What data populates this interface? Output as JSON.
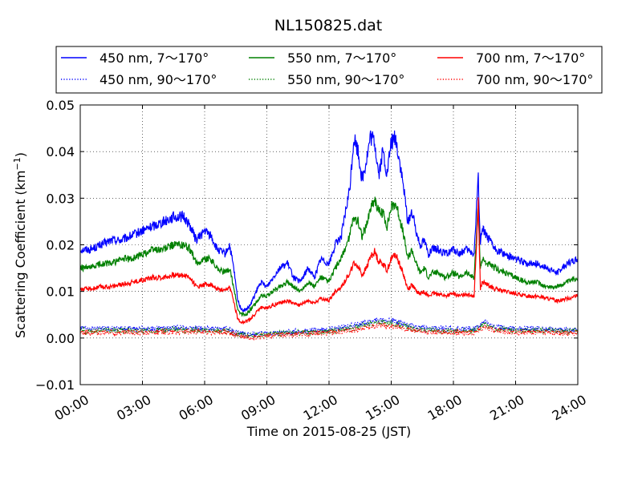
{
  "chart_data": {
    "type": "line",
    "title": "NL150825.dat",
    "xlabel": "Time on 2015-08-25 (JST)",
    "ylabel_main": "Scattering Coefficient (km",
    "ylabel_sup": "−1",
    "ylabel_end": ")",
    "xlim": [
      0,
      24
    ],
    "ylim": [
      -0.01,
      0.05
    ],
    "x_ticks": [
      0,
      3,
      6,
      9,
      12,
      15,
      18,
      21,
      24
    ],
    "x_tick_labels": [
      "00:00",
      "03:00",
      "06:00",
      "09:00",
      "12:00",
      "15:00",
      "18:00",
      "21:00",
      "24:00"
    ],
    "y_ticks": [
      -0.01,
      0.0,
      0.01,
      0.02,
      0.03,
      0.04,
      0.05
    ],
    "y_tick_labels": [
      "−0.01",
      "0.00",
      "0.01",
      "0.02",
      "0.03",
      "0.04",
      "0.05"
    ],
    "grid": true,
    "legend_position": "top",
    "x_unit": "hours JST",
    "series": [
      {
        "name": "450 nm, 7～170°",
        "color": "#0000ff",
        "style": "solid",
        "x": [
          0,
          0.5,
          1,
          1.5,
          2,
          2.5,
          3,
          3.5,
          4,
          4.5,
          5,
          5.3,
          5.6,
          6,
          6.3,
          6.6,
          7,
          7.2,
          7.4,
          7.6,
          7.8,
          8,
          8.2,
          8.4,
          8.7,
          9,
          9.3,
          9.6,
          10,
          10.3,
          10.6,
          11,
          11.3,
          11.6,
          12,
          12.3,
          12.6,
          13,
          13.2,
          13.4,
          13.6,
          13.8,
          14,
          14.2,
          14.4,
          14.6,
          14.8,
          15,
          15.2,
          15.4,
          15.6,
          15.8,
          16,
          16.2,
          16.4,
          16.6,
          16.8,
          17,
          17.3,
          17.6,
          18,
          18.3,
          18.6,
          19,
          19.2,
          19.3,
          19.4,
          19.6,
          20,
          20.5,
          21,
          21.5,
          22,
          22.5,
          23,
          23.5,
          24
        ],
        "y": [
          0.019,
          0.019,
          0.02,
          0.021,
          0.021,
          0.022,
          0.023,
          0.024,
          0.025,
          0.026,
          0.026,
          0.024,
          0.021,
          0.023,
          0.022,
          0.019,
          0.018,
          0.02,
          0.015,
          0.008,
          0.006,
          0.006,
          0.007,
          0.009,
          0.012,
          0.011,
          0.013,
          0.015,
          0.016,
          0.013,
          0.012,
          0.015,
          0.013,
          0.017,
          0.016,
          0.02,
          0.022,
          0.032,
          0.043,
          0.04,
          0.034,
          0.038,
          0.043,
          0.042,
          0.035,
          0.04,
          0.035,
          0.042,
          0.043,
          0.038,
          0.032,
          0.025,
          0.027,
          0.023,
          0.02,
          0.021,
          0.018,
          0.019,
          0.019,
          0.018,
          0.019,
          0.018,
          0.019,
          0.018,
          0.035,
          0.02,
          0.024,
          0.022,
          0.019,
          0.018,
          0.017,
          0.016,
          0.016,
          0.015,
          0.014,
          0.016,
          0.017
        ]
      },
      {
        "name": "550 nm, 7～170°",
        "color": "#008000",
        "style": "solid",
        "x": [
          0,
          0.5,
          1,
          1.5,
          2,
          2.5,
          3,
          3.5,
          4,
          4.5,
          5,
          5.3,
          5.6,
          6,
          6.3,
          6.6,
          7,
          7.2,
          7.4,
          7.6,
          7.8,
          8,
          8.2,
          8.4,
          8.7,
          9,
          9.3,
          9.6,
          10,
          10.3,
          10.6,
          11,
          11.3,
          11.6,
          12,
          12.3,
          12.6,
          13,
          13.2,
          13.4,
          13.6,
          13.8,
          14,
          14.2,
          14.4,
          14.6,
          14.8,
          15,
          15.2,
          15.4,
          15.6,
          15.8,
          16,
          16.2,
          16.4,
          16.6,
          16.8,
          17,
          17.3,
          17.6,
          18,
          18.3,
          18.6,
          19,
          19.2,
          19.3,
          19.4,
          19.6,
          20,
          20.5,
          21,
          21.5,
          22,
          22.5,
          23,
          23.5,
          24
        ],
        "y": [
          0.015,
          0.015,
          0.016,
          0.016,
          0.017,
          0.017,
          0.018,
          0.019,
          0.019,
          0.02,
          0.02,
          0.019,
          0.016,
          0.017,
          0.017,
          0.015,
          0.014,
          0.015,
          0.011,
          0.006,
          0.005,
          0.005,
          0.006,
          0.007,
          0.009,
          0.009,
          0.01,
          0.011,
          0.012,
          0.011,
          0.01,
          0.012,
          0.011,
          0.013,
          0.012,
          0.015,
          0.017,
          0.022,
          0.026,
          0.025,
          0.022,
          0.024,
          0.028,
          0.03,
          0.027,
          0.027,
          0.024,
          0.028,
          0.029,
          0.026,
          0.022,
          0.017,
          0.019,
          0.016,
          0.014,
          0.015,
          0.013,
          0.014,
          0.014,
          0.013,
          0.014,
          0.013,
          0.014,
          0.013,
          0.029,
          0.015,
          0.017,
          0.016,
          0.015,
          0.014,
          0.013,
          0.012,
          0.012,
          0.011,
          0.011,
          0.012,
          0.013
        ]
      },
      {
        "name": "700 nm, 7～170°",
        "color": "#ff0000",
        "style": "solid",
        "x": [
          0,
          0.5,
          1,
          1.5,
          2,
          2.5,
          3,
          3.5,
          4,
          4.5,
          5,
          5.3,
          5.6,
          6,
          6.3,
          6.6,
          7,
          7.2,
          7.4,
          7.6,
          7.8,
          8,
          8.2,
          8.4,
          8.7,
          9,
          9.3,
          9.6,
          10,
          10.3,
          10.6,
          11,
          11.3,
          11.6,
          12,
          12.3,
          12.6,
          13,
          13.2,
          13.4,
          13.6,
          13.8,
          14,
          14.2,
          14.4,
          14.6,
          14.8,
          15,
          15.2,
          15.4,
          15.6,
          15.8,
          16,
          16.2,
          16.4,
          16.6,
          16.8,
          17,
          17.3,
          17.6,
          18,
          18.3,
          18.6,
          19,
          19.2,
          19.3,
          19.4,
          19.6,
          20,
          20.5,
          21,
          21.5,
          22,
          22.5,
          23,
          23.5,
          24
        ],
        "y": [
          0.0105,
          0.0105,
          0.011,
          0.011,
          0.0115,
          0.012,
          0.0125,
          0.013,
          0.013,
          0.0135,
          0.0135,
          0.013,
          0.011,
          0.0115,
          0.0115,
          0.0105,
          0.01,
          0.011,
          0.008,
          0.004,
          0.0035,
          0.0035,
          0.004,
          0.005,
          0.0065,
          0.0065,
          0.007,
          0.0075,
          0.008,
          0.0075,
          0.007,
          0.008,
          0.0075,
          0.0085,
          0.008,
          0.01,
          0.011,
          0.014,
          0.016,
          0.0155,
          0.0135,
          0.015,
          0.0175,
          0.0185,
          0.0165,
          0.016,
          0.0145,
          0.017,
          0.018,
          0.016,
          0.0135,
          0.0105,
          0.0115,
          0.01,
          0.0095,
          0.01,
          0.009,
          0.0095,
          0.0095,
          0.009,
          0.0095,
          0.009,
          0.0095,
          0.009,
          0.029,
          0.0105,
          0.012,
          0.0115,
          0.0105,
          0.01,
          0.0095,
          0.009,
          0.009,
          0.0085,
          0.008,
          0.0085,
          0.009
        ]
      },
      {
        "name": "450 nm, 90～170°",
        "color": "#0000ff",
        "style": "dotted",
        "x": [
          0,
          1,
          2,
          3,
          4,
          5,
          6,
          7,
          7.5,
          8,
          8.5,
          9,
          10,
          11,
          12,
          13,
          13.5,
          14,
          14.5,
          15,
          15.5,
          16,
          17,
          18,
          19,
          19.5,
          20,
          21,
          22,
          23,
          24
        ],
        "y": [
          0.002,
          0.002,
          0.002,
          0.002,
          0.002,
          0.0022,
          0.002,
          0.002,
          0.0012,
          0.0008,
          0.0008,
          0.001,
          0.0012,
          0.0015,
          0.0018,
          0.0025,
          0.003,
          0.0035,
          0.004,
          0.0038,
          0.0032,
          0.0025,
          0.002,
          0.002,
          0.002,
          0.0035,
          0.0025,
          0.002,
          0.002,
          0.0018,
          0.0018
        ]
      },
      {
        "name": "550 nm, 90～170°",
        "color": "#008000",
        "style": "dotted",
        "x": [
          0,
          1,
          2,
          3,
          4,
          5,
          6,
          7,
          7.5,
          8,
          8.5,
          9,
          10,
          11,
          12,
          13,
          13.5,
          14,
          14.5,
          15,
          15.5,
          16,
          17,
          18,
          19,
          19.5,
          20,
          21,
          22,
          23,
          24
        ],
        "y": [
          0.0016,
          0.0016,
          0.0016,
          0.0016,
          0.0017,
          0.0018,
          0.0016,
          0.0016,
          0.001,
          0.0006,
          0.0006,
          0.0008,
          0.001,
          0.0012,
          0.0015,
          0.002,
          0.0025,
          0.003,
          0.0034,
          0.0032,
          0.0027,
          0.002,
          0.0016,
          0.0016,
          0.0016,
          0.003,
          0.002,
          0.0016,
          0.0016,
          0.0015,
          0.0015
        ]
      },
      {
        "name": "700 nm, 90～170°",
        "color": "#ff0000",
        "style": "dotted",
        "x": [
          0,
          1,
          2,
          3,
          4,
          5,
          6,
          7,
          7.5,
          8,
          8.5,
          9,
          10,
          11,
          12,
          13,
          13.5,
          14,
          14.5,
          15,
          15.5,
          16,
          17,
          18,
          19,
          19.5,
          20,
          21,
          22,
          23,
          24
        ],
        "y": [
          0.0012,
          0.0012,
          0.0012,
          0.0012,
          0.0013,
          0.0014,
          0.0012,
          0.0012,
          0.0006,
          0.0002,
          0.0002,
          0.0005,
          0.0007,
          0.0009,
          0.0012,
          0.0016,
          0.002,
          0.0025,
          0.0028,
          0.0026,
          0.0022,
          0.0016,
          0.0012,
          0.0012,
          0.0012,
          0.0025,
          0.0016,
          0.0012,
          0.0012,
          0.0011,
          0.0011
        ]
      }
    ]
  }
}
